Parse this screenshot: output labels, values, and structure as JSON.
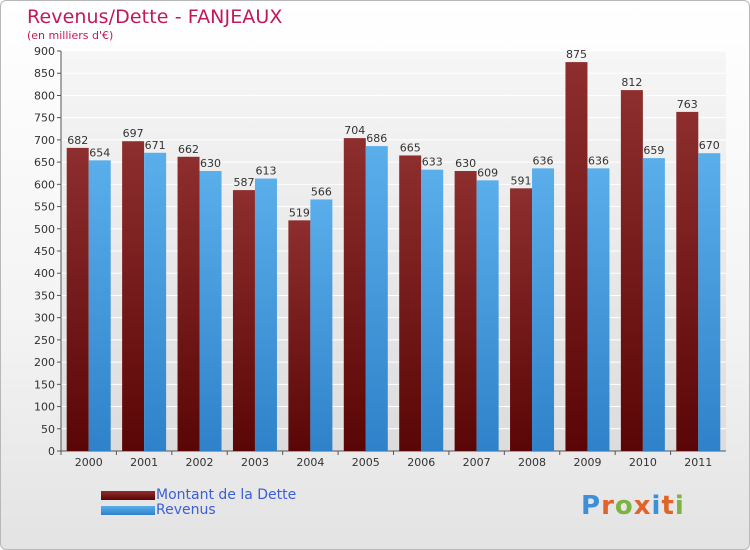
{
  "title": "Revenus/Dette - FANJEAUX",
  "subtitle": "(en milliers d'€)",
  "logo": {
    "letters": [
      "P",
      "r",
      "o",
      "x",
      "i",
      "t",
      "i"
    ],
    "colors": [
      "#3d8fd8",
      "#e0632a",
      "#7cb342",
      "#e0632a",
      "#3d8fd8",
      "#e0632a",
      "#7cb342"
    ]
  },
  "colors": {
    "dette": "#7a1c1c",
    "revenus": "#4a9fe0",
    "title": "#c2185b"
  },
  "chart_data": {
    "type": "bar",
    "title": "Revenus/Dette - FANJEAUX",
    "subtitle": "(en milliers d'€)",
    "categories": [
      "2000",
      "2001",
      "2002",
      "2003",
      "2004",
      "2005",
      "2006",
      "2007",
      "2008",
      "2009",
      "2010",
      "2011"
    ],
    "series": [
      {
        "name": "Montant de la Dette",
        "color": "#7a1c1c",
        "values": [
          682,
          697,
          662,
          587,
          519,
          704,
          665,
          630,
          591,
          875,
          812,
          763
        ]
      },
      {
        "name": "Revenus",
        "color": "#4a9fe0",
        "values": [
          654,
          671,
          630,
          613,
          566,
          686,
          633,
          609,
          636,
          636,
          659,
          670
        ]
      }
    ],
    "ylim": [
      0,
      900
    ],
    "yticks": [
      0,
      50,
      100,
      150,
      200,
      250,
      300,
      350,
      400,
      450,
      500,
      550,
      600,
      650,
      700,
      750,
      800,
      850,
      900
    ],
    "grid": true,
    "legend": "bottom-left"
  }
}
